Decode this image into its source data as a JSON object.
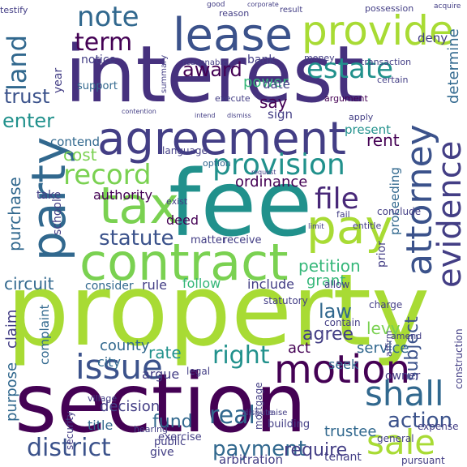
{
  "words": [
    {
      "text": "property",
      "color": "#a8db34"
    },
    {
      "text": "interest",
      "color": "#46317e"
    },
    {
      "text": "section",
      "color": "#440154"
    },
    {
      "text": "fee",
      "color": "#21918c"
    },
    {
      "text": "agreement",
      "color": "#433e85"
    },
    {
      "text": "contract",
      "color": "#7ad151"
    },
    {
      "text": "tax",
      "color": "#7ad151"
    },
    {
      "text": "pay",
      "color": "#a8db34"
    },
    {
      "text": "lease",
      "color": "#3b528b"
    },
    {
      "text": "provide",
      "color": "#a8db34"
    },
    {
      "text": "party",
      "color": "#31688e"
    },
    {
      "text": "attorney",
      "color": "#3b528b"
    },
    {
      "text": "evidence",
      "color": "#433e85"
    },
    {
      "text": "motion",
      "color": "#440154"
    },
    {
      "text": "issue",
      "color": "#3b528b"
    },
    {
      "text": "shall",
      "color": "#31688e"
    },
    {
      "text": "sale",
      "color": "#a8db34"
    },
    {
      "text": "district",
      "color": "#3b528b"
    },
    {
      "text": "payment",
      "color": "#31688e"
    },
    {
      "text": "require",
      "color": "#433e85"
    },
    {
      "text": "record",
      "color": "#7ad151"
    },
    {
      "text": "provision",
      "color": "#21918c"
    },
    {
      "text": "estate",
      "color": "#21918c"
    },
    {
      "text": "note",
      "color": "#31688e"
    },
    {
      "text": "term",
      "color": "#440154"
    },
    {
      "text": "land",
      "color": "#31688e"
    },
    {
      "text": "file",
      "color": "#482878"
    },
    {
      "text": "statute",
      "color": "#3b528b"
    },
    {
      "text": "right",
      "color": "#21918c"
    },
    {
      "text": "real",
      "color": "#31688e"
    },
    {
      "text": "action",
      "color": "#3b528b"
    },
    {
      "text": "petition",
      "color": "#35b779"
    },
    {
      "text": "grant",
      "color": "#35b779"
    },
    {
      "text": "law",
      "color": "#31688e"
    },
    {
      "text": "trust",
      "color": "#3b528b"
    },
    {
      "text": "enter",
      "color": "#21918c"
    },
    {
      "text": "award",
      "color": "#440154"
    },
    {
      "text": "power",
      "color": "#35b779"
    },
    {
      "text": "cost",
      "color": "#7ad151"
    },
    {
      "text": "ordinance",
      "color": "#440154"
    },
    {
      "text": "authority",
      "color": "#440154"
    },
    {
      "text": "circuit",
      "color": "#31688e"
    },
    {
      "text": "purchase",
      "color": "#31688e"
    },
    {
      "text": "county",
      "color": "#31688e"
    },
    {
      "text": "rate",
      "color": "#21918c"
    },
    {
      "text": "decision",
      "color": "#433e85"
    },
    {
      "text": "fund",
      "color": "#31688e"
    },
    {
      "text": "agree",
      "color": "#433e85"
    },
    {
      "text": "levy",
      "color": "#7ad151"
    },
    {
      "text": "subject",
      "color": "#3b528b"
    },
    {
      "text": "trustee",
      "color": "#31688e"
    },
    {
      "text": "rent",
      "color": "#440154"
    },
    {
      "text": "deed",
      "color": "#440154"
    },
    {
      "text": "say",
      "color": "#440154"
    },
    {
      "text": "date",
      "color": "#433e85"
    },
    {
      "text": "sign",
      "color": "#433e85"
    },
    {
      "text": "proceeding",
      "color": "#31688e"
    },
    {
      "text": "determine",
      "color": "#31688e"
    },
    {
      "text": "consider",
      "color": "#31688e"
    },
    {
      "text": "rule",
      "color": "#433e85"
    },
    {
      "text": "follow",
      "color": "#35b779"
    },
    {
      "text": "include",
      "color": "#433e85"
    },
    {
      "text": "act",
      "color": "#440154"
    },
    {
      "text": "service",
      "color": "#31688e"
    },
    {
      "text": "seek",
      "color": "#31688e"
    },
    {
      "text": "present",
      "color": "#21918c"
    },
    {
      "text": "contend",
      "color": "#31688e"
    },
    {
      "text": "complaint",
      "color": "#31688e"
    },
    {
      "text": "claim",
      "color": "#433e85"
    },
    {
      "text": "purpose",
      "color": "#31688e"
    },
    {
      "text": "title",
      "color": "#31688e"
    },
    {
      "text": "argue",
      "color": "#433e85"
    },
    {
      "text": "city",
      "color": "#31688e"
    },
    {
      "text": "village",
      "color": "#433e85"
    },
    {
      "text": "school",
      "color": "#433e85"
    },
    {
      "text": "take",
      "color": "#433e85"
    },
    {
      "text": "year",
      "color": "#433e85"
    },
    {
      "text": "notice",
      "color": "#433e85"
    },
    {
      "text": "bank",
      "color": "#433e85"
    },
    {
      "text": "support",
      "color": "#31688e"
    },
    {
      "text": "deny",
      "color": "#433e85"
    },
    {
      "text": "testify",
      "color": "#433e85"
    },
    {
      "text": "possession",
      "color": "#433e85"
    },
    {
      "text": "acquire",
      "color": "#433e85"
    },
    {
      "text": "money",
      "color": "#433e85"
    },
    {
      "text": "reasonable",
      "color": "#433e85"
    },
    {
      "text": "transaction",
      "color": "#433e85"
    },
    {
      "text": "certain",
      "color": "#433e85"
    },
    {
      "text": "argument",
      "color": "#440154"
    },
    {
      "text": "execute",
      "color": "#433e85"
    },
    {
      "text": "apply",
      "color": "#433e85"
    },
    {
      "text": "language",
      "color": "#433e85"
    },
    {
      "text": "option",
      "color": "#31688e"
    },
    {
      "text": "matter",
      "color": "#433e85"
    },
    {
      "text": "receive",
      "color": "#433e85"
    },
    {
      "text": "statutory",
      "color": "#433e85"
    },
    {
      "text": "contain",
      "color": "#433e85"
    },
    {
      "text": "allow",
      "color": "#433e85"
    },
    {
      "text": "charge",
      "color": "#433e85"
    },
    {
      "text": "legal",
      "color": "#433e85"
    },
    {
      "text": "owner",
      "color": "#433e85"
    },
    {
      "text": "building",
      "color": "#433e85"
    },
    {
      "text": "exercise",
      "color": "#433e85"
    },
    {
      "text": "give",
      "color": "#433e85"
    },
    {
      "text": "public",
      "color": "#433e85"
    },
    {
      "text": "security",
      "color": "#433e85"
    },
    {
      "text": "arbitration",
      "color": "#433e85"
    },
    {
      "text": "tenant",
      "color": "#433e85"
    },
    {
      "text": "pursuant",
      "color": "#433e85"
    },
    {
      "text": "general",
      "color": "#433e85"
    },
    {
      "text": "expense",
      "color": "#433e85"
    },
    {
      "text": "mortgage",
      "color": "#433e85"
    },
    {
      "text": "entitle",
      "color": "#433e85"
    },
    {
      "text": "conclude",
      "color": "#433e85"
    },
    {
      "text": "fail",
      "color": "#433e85"
    },
    {
      "text": "prior",
      "color": "#433e85"
    },
    {
      "text": "summary",
      "color": "#433e85"
    },
    {
      "text": "exist",
      "color": "#433e85"
    },
    {
      "text": "construction",
      "color": "#433e85"
    },
    {
      "text": "amend",
      "color": "#433e85"
    },
    {
      "text": "affirm",
      "color": "#433e85"
    },
    {
      "text": "hearing",
      "color": "#433e85"
    },
    {
      "text": "dispute",
      "color": "#433e85"
    },
    {
      "text": "raise",
      "color": "#433e85"
    },
    {
      "text": "contention",
      "color": "#433e85"
    },
    {
      "text": "intend",
      "color": "#433e85"
    },
    {
      "text": "dismiss",
      "color": "#433e85"
    },
    {
      "text": "request",
      "color": "#433e85"
    },
    {
      "text": "limit",
      "color": "#433e85"
    },
    {
      "text": "good",
      "color": "#433e85"
    },
    {
      "text": "reason",
      "color": "#433e85"
    },
    {
      "text": "result",
      "color": "#433e85"
    },
    {
      "text": "corporate",
      "color": "#433e85"
    }
  ]
}
